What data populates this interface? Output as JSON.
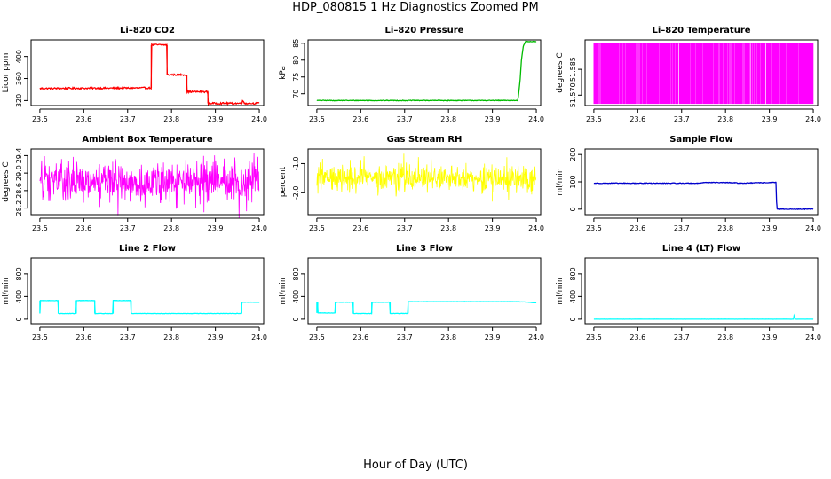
{
  "page": {
    "title": "HDP_080815  1 Hz Diagnostics Zoomed PM",
    "xlabel": "Hour of Day (UTC)"
  },
  "chart_data": [
    {
      "type": "line",
      "title": "Li–820 CO2",
      "ylabel": "Licor ppm",
      "color": "#ff0000",
      "xlim": [
        23.48,
        24.01
      ],
      "ylim": [
        311,
        430
      ],
      "xticks": [
        "23.5",
        "23.6",
        "23.7",
        "23.8",
        "23.9",
        "24.0"
      ],
      "yticks": [
        "320",
        "360",
        "400"
      ],
      "noise": 1.5,
      "series": [
        {
          "x": [
            23.5,
            23.754,
            23.754,
            23.79,
            23.79,
            23.835,
            23.835,
            23.883,
            23.883,
            23.96,
            23.962,
            23.965,
            24.0
          ],
          "y": [
            342,
            343,
            421,
            421,
            367,
            367,
            336,
            336,
            315,
            315,
            322,
            315,
            315
          ]
        }
      ]
    },
    {
      "type": "line",
      "title": "Li–820 Pressure",
      "ylabel": "kPa",
      "color": "#00bb00",
      "xlim": [
        23.48,
        24.01
      ],
      "ylim": [
        66.5,
        86
      ],
      "xticks": [
        "23.5",
        "23.6",
        "23.7",
        "23.8",
        "23.9",
        "24.0"
      ],
      "yticks": [
        "70",
        "75",
        "80",
        "85"
      ],
      "noise": 0.1,
      "series": [
        {
          "x": [
            23.5,
            23.955,
            23.958,
            23.963,
            23.966,
            23.97,
            23.975,
            24.0
          ],
          "y": [
            68,
            68,
            68,
            74,
            80,
            84,
            85.5,
            85.5
          ]
        }
      ]
    },
    {
      "type": "line",
      "title": "Li–820 Temperature",
      "ylabel": "degrees C",
      "color": "#ff00ff",
      "xlim": [
        23.48,
        24.01
      ],
      "ylim": [
        51.564,
        51.602
      ],
      "xticks": [
        "23.5",
        "23.6",
        "23.7",
        "23.8",
        "23.9",
        "24.0"
      ],
      "yticks": [
        "51.570",
        "51.585"
      ],
      "mode": "switching",
      "levels": [
        51.565,
        51.6
      ],
      "x_range": [
        23.5,
        24.0
      ]
    },
    {
      "type": "line",
      "title": "Ambient Box Temperature",
      "ylabel": "degrees C",
      "color": "#ff00ff",
      "xlim": [
        23.48,
        24.01
      ],
      "ylim": [
        28.05,
        29.55
      ],
      "xticks": [
        "23.5",
        "23.6",
        "23.7",
        "23.8",
        "23.9",
        "24.0"
      ],
      "yticks": [
        "28.2",
        "28.6",
        "29.0",
        "29.4"
      ],
      "mode": "noise",
      "noise_range": [
        28.1,
        29.5
      ],
      "x_range": [
        23.5,
        24.0
      ]
    },
    {
      "type": "line",
      "title": "Gas Stream RH",
      "ylabel": "percent",
      "color": "#ffff00",
      "xlim": [
        23.48,
        24.01
      ],
      "ylim": [
        -2.75,
        -0.5
      ],
      "xticks": [
        "23.5",
        "23.6",
        "23.7",
        "23.8",
        "23.9",
        "24.0"
      ],
      "yticks": [
        "-2.0",
        "-1.0"
      ],
      "mode": "noise",
      "noise_range": [
        -2.2,
        -0.8
      ],
      "x_range": [
        23.5,
        24.0
      ]
    },
    {
      "type": "line",
      "title": "Sample Flow",
      "ylabel": "ml/min",
      "color": "#0000cc",
      "xlim": [
        23.48,
        24.01
      ],
      "ylim": [
        -20,
        220
      ],
      "xticks": [
        "23.5",
        "23.6",
        "23.7",
        "23.8",
        "23.9",
        "24.0"
      ],
      "yticks": [
        "0",
        "100",
        "200"
      ],
      "noise": 1.2,
      "series": [
        {
          "x": [
            23.5,
            23.74,
            23.75,
            23.82,
            23.83,
            23.915,
            23.917,
            24.0
          ],
          "y": [
            95,
            95,
            98,
            97,
            95,
            98,
            0,
            0
          ]
        }
      ]
    },
    {
      "type": "line",
      "title": "Line 2 Flow",
      "ylabel": "ml/min",
      "color": "#00ffff",
      "xlim": [
        23.48,
        24.01
      ],
      "ylim": [
        -80,
        1080
      ],
      "xticks": [
        "23.5",
        "23.6",
        "23.7",
        "23.8",
        "23.9",
        "24.0"
      ],
      "yticks": [
        "0",
        "400",
        "800"
      ],
      "noise": 3,
      "series": [
        {
          "x": [
            23.5,
            23.5,
            23.542,
            23.542,
            23.583,
            23.583,
            23.625,
            23.625,
            23.667,
            23.667,
            23.708,
            23.708,
            23.96,
            23.96,
            24.0
          ],
          "y": [
            100,
            330,
            330,
            100,
            100,
            330,
            330,
            100,
            100,
            330,
            330,
            100,
            100,
            300,
            300
          ]
        }
      ]
    },
    {
      "type": "line",
      "title": "Line 3 Flow",
      "ylabel": "ml/min",
      "color": "#00ffff",
      "xlim": [
        23.48,
        24.01
      ],
      "ylim": [
        -80,
        1080
      ],
      "xticks": [
        "23.5",
        "23.6",
        "23.7",
        "23.8",
        "23.9",
        "24.0"
      ],
      "yticks": [
        "0",
        "400",
        "800"
      ],
      "noise": 3,
      "series": [
        {
          "x": [
            23.5,
            23.5,
            23.502,
            23.502,
            23.542,
            23.542,
            23.583,
            23.583,
            23.625,
            23.625,
            23.667,
            23.667,
            23.708,
            23.708,
            23.96,
            24.0
          ],
          "y": [
            110,
            300,
            300,
            110,
            110,
            300,
            300,
            100,
            100,
            300,
            300,
            100,
            100,
            310,
            310,
            290
          ]
        }
      ]
    },
    {
      "type": "line",
      "title": "Line 4 (LT) Flow",
      "ylabel": "ml/min",
      "color": "#00ffff",
      "xlim": [
        23.48,
        24.01
      ],
      "ylim": [
        -80,
        1080
      ],
      "xticks": [
        "23.5",
        "23.6",
        "23.7",
        "23.8",
        "23.9",
        "24.0"
      ],
      "yticks": [
        "0",
        "400",
        "800"
      ],
      "noise": 1,
      "series": [
        {
          "x": [
            23.5,
            23.955,
            23.956,
            23.957,
            23.958,
            24.0
          ],
          "y": [
            0,
            0,
            60,
            60,
            0,
            0
          ]
        }
      ]
    }
  ]
}
